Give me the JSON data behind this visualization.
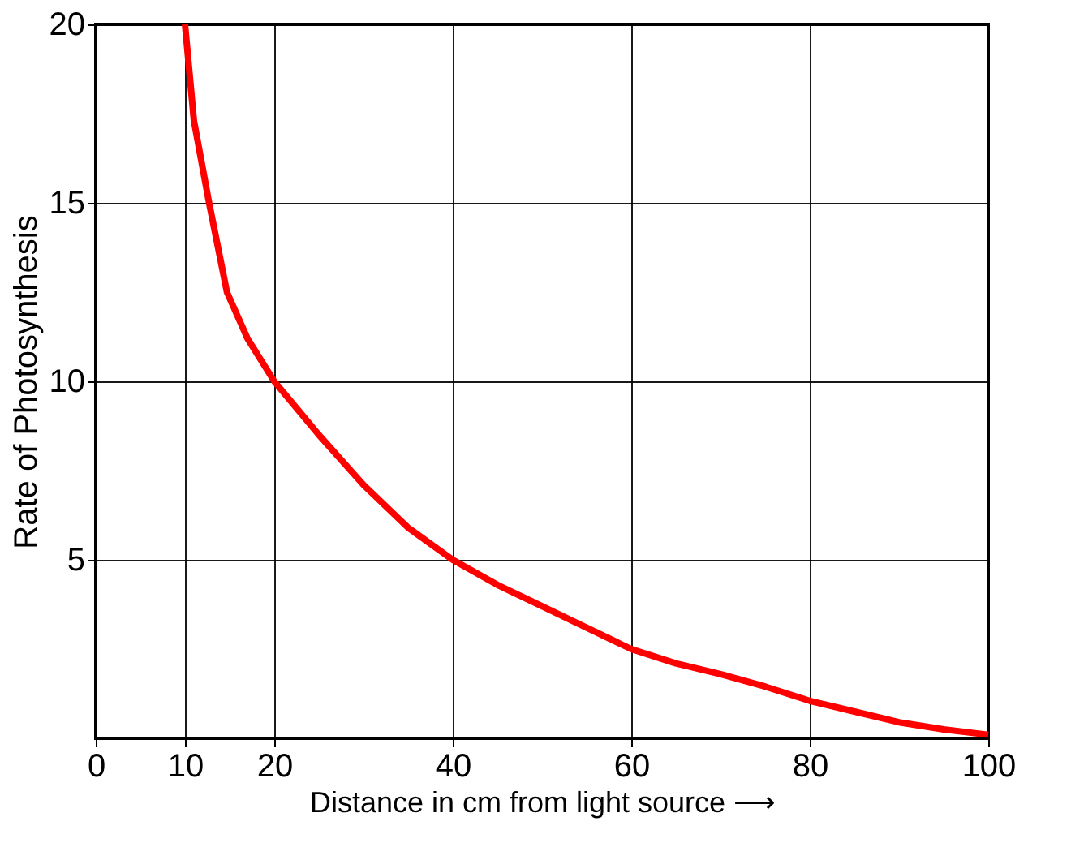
{
  "chart_data": {
    "type": "line",
    "xlabel": "Distance in cm from light source ⟶",
    "ylabel": "Rate of Photosynthesis",
    "x": [
      10,
      11,
      12.7,
      14.7,
      17,
      20,
      25,
      30,
      35,
      40,
      45,
      50,
      55,
      60,
      65,
      70,
      75,
      80,
      85,
      90,
      95,
      100
    ],
    "series": [
      {
        "color": "#ff0000",
        "values": [
          20,
          17.3,
          15,
          12.5,
          11.2,
          10,
          8.5,
          7.1,
          5.9,
          5,
          4.3,
          3.7,
          3.1,
          2.5,
          2.1,
          1.8,
          1.45,
          1.05,
          0.75,
          0.45,
          0.25,
          0.1
        ]
      }
    ],
    "xlim": [
      0,
      100
    ],
    "ylim": [
      0,
      20
    ],
    "xticks": [
      0,
      10,
      20,
      40,
      60,
      80,
      100
    ],
    "yticks": [
      5,
      10,
      15,
      20
    ],
    "grid": true,
    "marker": "none",
    "line_style": "solid"
  }
}
